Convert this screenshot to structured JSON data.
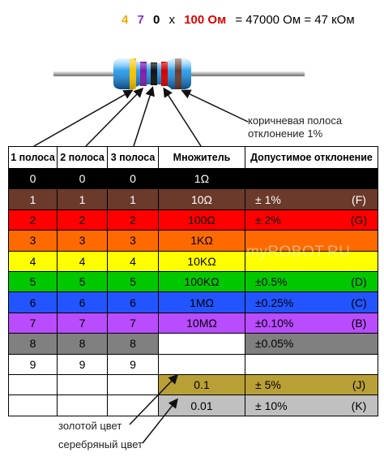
{
  "formula": {
    "digits": [
      {
        "text": "4",
        "color": "#f5a800"
      },
      {
        "text": "7",
        "color": "#8b2fc9"
      },
      {
        "text": "0",
        "color": "#000000"
      }
    ],
    "times": "x",
    "resistance": "100 Ом",
    "resistance_color": "#e00000",
    "result": "= 47000 Ом = 47 кОм"
  },
  "note": {
    "line1": "коричневая полоса",
    "line2": "отклонение 1%"
  },
  "table": {
    "headers": [
      "1 полоса",
      "2 полоса",
      "3 полоса",
      "Множитель",
      "Допустимое отклонение"
    ],
    "rows": [
      {
        "band": "0",
        "mult": "1Ω",
        "tol": "",
        "code": "",
        "color": "#000000",
        "text": "#ffffff"
      },
      {
        "band": "1",
        "mult": "10Ω",
        "tol": "±   1%",
        "code": "(F)",
        "color": "#6b3a2a",
        "text": "#ffffff"
      },
      {
        "band": "2",
        "mult": "100Ω",
        "tol": "±   2%",
        "code": "(G)",
        "color": "#ff0000",
        "text": "#000000"
      },
      {
        "band": "3",
        "mult": "1KΩ",
        "tol": "",
        "code": "",
        "color": "#ff6a00",
        "text": "#000000"
      },
      {
        "band": "4",
        "mult": "10KΩ",
        "tol": "",
        "code": "",
        "color": "#ffff00",
        "text": "#000000"
      },
      {
        "band": "5",
        "mult": "100KΩ",
        "tol": "±0.5%",
        "code": "(D)",
        "color": "#00c800",
        "text": "#000000"
      },
      {
        "band": "6",
        "mult": "1MΩ",
        "tol": "±0.25%",
        "code": "(C)",
        "color": "#2255ff",
        "text": "#000000"
      },
      {
        "band": "7",
        "mult": "10MΩ",
        "tol": "±0.10%",
        "code": "(B)",
        "color": "#b94cff",
        "text": "#000000"
      },
      {
        "band": "8",
        "mult": "",
        "tol": "±0.05%",
        "code": "",
        "color": "#808080",
        "text": "#000000"
      },
      {
        "band": "9",
        "mult": "",
        "tol": "",
        "code": "",
        "color": "#ffffff",
        "text": "#000000"
      }
    ],
    "gold": {
      "mult": "0.1",
      "tol": "±   5%",
      "code": "(J)",
      "color": "#b9a036"
    },
    "silver": {
      "mult": "0.01",
      "tol": "±  10%",
      "code": "(K)",
      "color": "#c0c0c0"
    }
  },
  "watermark": "myROBOT.RU",
  "labels": {
    "gold": "золотой цвет",
    "silver": "серебряный цвет"
  }
}
